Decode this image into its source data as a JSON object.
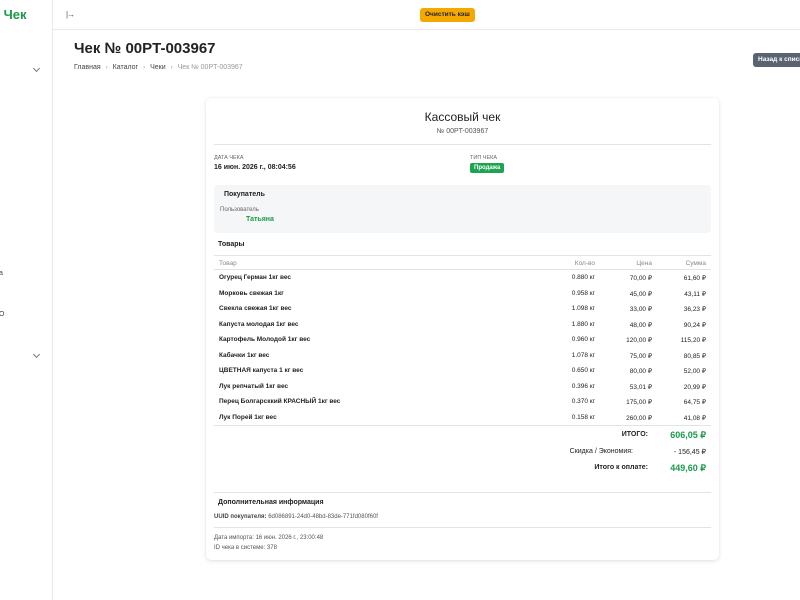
{
  "app": {
    "brand": "й Чек"
  },
  "sidebar": {
    "fragments": [
      "а",
      "О"
    ]
  },
  "topbar": {
    "collapse_icon": "|→",
    "clear_cache_label": "Очистить кэш"
  },
  "page": {
    "title": "Чек № 00PT-003967",
    "back_label": "Назад к списку",
    "breadcrumb": [
      "Главная",
      "Каталог",
      "Чеки",
      "Чек № 00PT-003967"
    ],
    "breadcrumb_sep": "›"
  },
  "receipt": {
    "title": "Кассовый чек",
    "number": "№ 00PT-003967",
    "date_label": "ДАТА ЧЕКА",
    "date_value": "16 июн. 2026 г., 08:04:56",
    "type_label": "ТИП ЧЕКА",
    "type_value": "Продажа",
    "buyer": {
      "section_title": "Покупатель",
      "user_label": "Пользователь",
      "user_name": "Татьяна"
    },
    "goods": {
      "section_title": "Товары",
      "headers": {
        "name": "Товар",
        "qty": "Кол-во",
        "price": "Цена",
        "sum": "Сумма"
      },
      "rows": [
        {
          "name": "Огурец Герман 1кг вес",
          "qty": "0.880 кг",
          "price": "70,00 ₽",
          "sum": "61,60 ₽"
        },
        {
          "name": "Морковь свежая 1кг",
          "qty": "0.958 кг",
          "price": "45,00 ₽",
          "sum": "43,11 ₽"
        },
        {
          "name": "Свекла свежая 1кг вес",
          "qty": "1.098 кг",
          "price": "33,00 ₽",
          "sum": "36,23 ₽"
        },
        {
          "name": "Капуста молодая 1кг вес",
          "qty": "1.880 кг",
          "price": "48,00 ₽",
          "sum": "90,24 ₽"
        },
        {
          "name": "Картофель Молодой 1кг вес",
          "qty": "0.960 кг",
          "price": "120,00 ₽",
          "sum": "115,20 ₽"
        },
        {
          "name": "Кабачки 1кг вес",
          "qty": "1.078 кг",
          "price": "75,00 ₽",
          "sum": "80,85 ₽"
        },
        {
          "name": "ЦВЕТНАЯ капуста 1 кг вес",
          "qty": "0.650 кг",
          "price": "80,00 ₽",
          "sum": "52,00 ₽"
        },
        {
          "name": "Лук репчатый 1кг вес",
          "qty": "0.396 кг",
          "price": "53,01 ₽",
          "sum": "20,99 ₽"
        },
        {
          "name": "Перец Болгарсккий КРАСНЫЙ 1кг вес",
          "qty": "0.370 кг",
          "price": "175,00 ₽",
          "sum": "64,75 ₽"
        },
        {
          "name": "Лук Порей 1кг вес",
          "qty": "0.158 кг",
          "price": "260,00 ₽",
          "sum": "41,08 ₽"
        }
      ]
    },
    "totals": {
      "total_label": "ИТОГО:",
      "total_value": "606,05 ₽",
      "discount_label": "Скидка / Экономия:",
      "discount_value": "- 156,45 ₽",
      "to_pay_label": "Итого к оплате:",
      "to_pay_value": "449,60 ₽"
    },
    "extra": {
      "section_title": "Дополнительная информация",
      "uuid_label": "UUID покупателя:",
      "uuid_value": "6d086891-24d0-48bd-83de-771fd080f60f",
      "import_date": "Дата импорта: 16 июн. 2026 г., 23:00:48",
      "system_id": "ID чека в системе: 378"
    }
  },
  "colors": {
    "accent": "#1a9a4a",
    "warning": "#f5a800",
    "badge": "#1ea351",
    "back_button": "#5a6470"
  }
}
